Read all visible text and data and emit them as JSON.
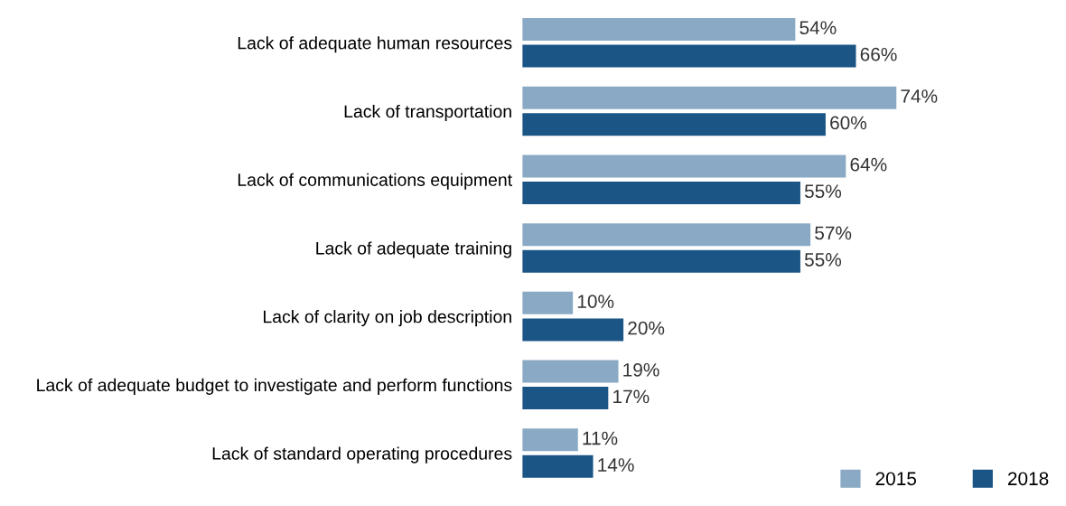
{
  "chart_data": {
    "type": "bar",
    "orientation": "horizontal",
    "categories": [
      "Lack of adequate human resources",
      "Lack of transportation",
      "Lack of communications equipment",
      "Lack of adequate training",
      "Lack of clarity on job description",
      "Lack of adequate budget to investigate and perform functions",
      "Lack of standard operating procedures"
    ],
    "series": [
      {
        "name": "2015",
        "color": "#8aa9c4",
        "values": [
          54,
          74,
          64,
          57,
          10,
          19,
          11
        ],
        "value_labels": [
          "54%",
          "74%",
          "64%",
          "57%",
          "10%",
          "19%",
          "11%"
        ]
      },
      {
        "name": "2018",
        "color": "#1a5585",
        "values": [
          66,
          60,
          55,
          55,
          20,
          17,
          14
        ],
        "value_labels": [
          "66%",
          "60%",
          "55%",
          "55%",
          "20%",
          "17%",
          "14%"
        ]
      }
    ],
    "tick_labels": "y",
    "grid": false,
    "legend": "bottom right"
  }
}
